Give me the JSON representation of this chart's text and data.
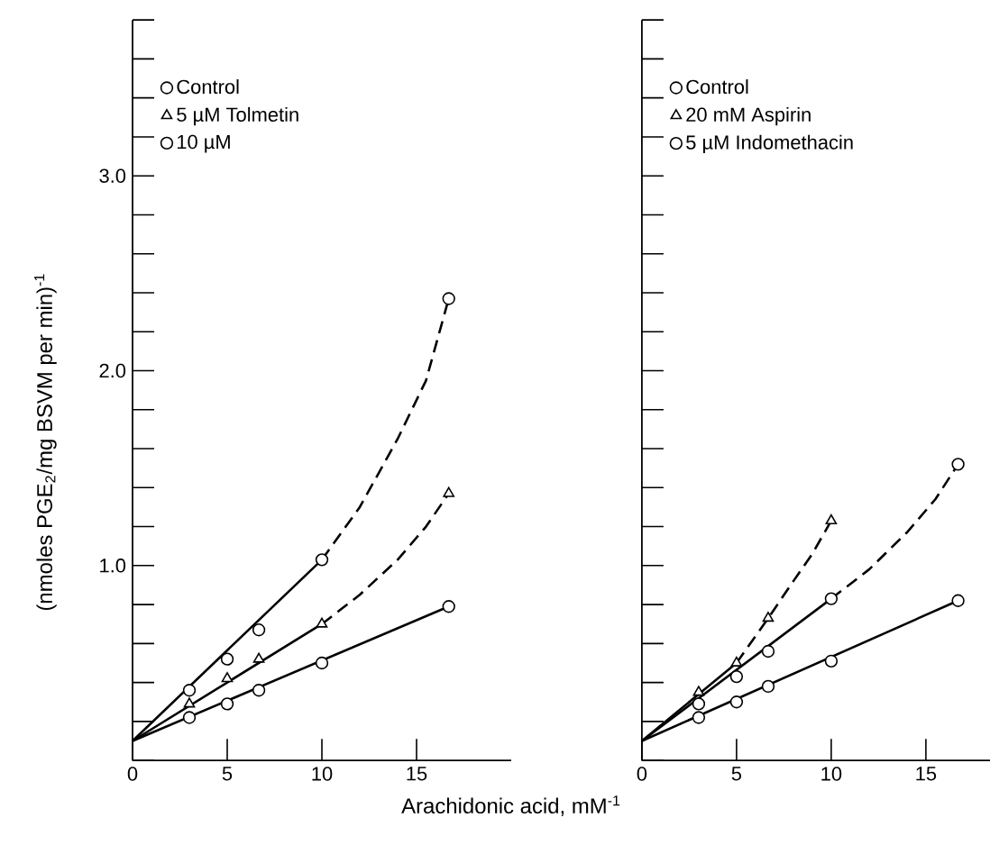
{
  "chart_data": [
    {
      "type": "scatter",
      "xlabel": "Arachidonic acid,  mM$^{-1}$",
      "ylabel": "(nmoles PGE$_{2}$/mg BSVM per min)$^{-1}$",
      "xlim": [
        0,
        20
      ],
      "ylim": [
        0,
        3.8
      ],
      "xticks": [
        0,
        5,
        10,
        15
      ],
      "yticks": [
        {
          "value": 0,
          "label": null
        },
        {
          "value": 0.2,
          "label": null
        },
        {
          "value": 0.4,
          "label": null
        },
        {
          "value": 0.6,
          "label": null
        },
        {
          "value": 0.8,
          "label": null
        },
        {
          "value": 1.0,
          "label": "1.0"
        },
        {
          "value": 1.2,
          "label": null
        },
        {
          "value": 1.4,
          "label": null
        },
        {
          "value": 1.6,
          "label": null
        },
        {
          "value": 1.8,
          "label": null
        },
        {
          "value": 2.0,
          "label": "2.0"
        },
        {
          "value": 2.2,
          "label": null
        },
        {
          "value": 2.4,
          "label": null
        },
        {
          "value": 2.6,
          "label": null
        },
        {
          "value": 2.8,
          "label": null
        },
        {
          "value": 3.0,
          "label": "3.0"
        },
        {
          "value": 3.2,
          "label": null
        },
        {
          "value": 3.4,
          "label": null
        },
        {
          "value": 3.6,
          "label": null
        },
        {
          "value": 3.8,
          "label": null
        }
      ],
      "grid": false,
      "legend": "top left",
      "series": [
        {
          "name": "Control",
          "color": "#000000",
          "marker": "circle",
          "x": [
            3,
            5,
            6.67,
            10,
            16.7
          ],
          "values": [
            0.22,
            0.29,
            0.36,
            0.5,
            0.79
          ]
        },
        {
          "name": "5 µM  Tolmetin",
          "color": "#000000",
          "marker": "triangle",
          "x": [
            3,
            5,
            6.67,
            10,
            16.7
          ],
          "values": [
            0.29,
            0.42,
            0.52,
            0.7,
            1.37
          ]
        },
        {
          "name": "10 µM",
          "color": "#000000",
          "marker": "circle",
          "x": [
            3,
            5,
            6.67,
            10,
            16.7
          ],
          "values": [
            0.36,
            0.52,
            0.67,
            1.03,
            2.37
          ]
        },
        {
          "type": "line",
          "color": "#000000",
          "line_style": "solid",
          "x": [
            0,
            16.7
          ],
          "values": [
            0.1,
            0.79
          ]
        },
        {
          "type": "line",
          "color": "#000000",
          "line_style": "solid",
          "x": [
            0,
            10
          ],
          "values": [
            0.1,
            0.7
          ]
        },
        {
          "type": "line",
          "color": "#000000",
          "line_style": "solid",
          "x": [
            0,
            10
          ],
          "values": [
            0.1,
            1.03
          ]
        },
        {
          "type": "line",
          "color": "#000000",
          "line_style": "dashed",
          "x": [
            10,
            12,
            14,
            15.5,
            16.7
          ],
          "values": [
            0.7,
            0.85,
            1.03,
            1.2,
            1.37
          ]
        },
        {
          "type": "line",
          "color": "#000000",
          "line_style": "dashed",
          "x": [
            10,
            12,
            14,
            15.5,
            16.7
          ],
          "values": [
            1.03,
            1.3,
            1.65,
            1.95,
            2.37
          ]
        }
      ]
    },
    {
      "type": "scatter",
      "tick_labels": "x",
      "xlim": [
        0,
        20
      ],
      "ylim": [
        0,
        3.8
      ],
      "xticks": [
        0,
        5,
        10,
        15
      ],
      "yticks": [
        {
          "value": 0,
          "label": null
        },
        {
          "value": 0.2,
          "label": null
        },
        {
          "value": 0.4,
          "label": null
        },
        {
          "value": 0.6,
          "label": null
        },
        {
          "value": 0.8,
          "label": null
        },
        {
          "value": 1.0,
          "label": null
        },
        {
          "value": 1.2,
          "label": null
        },
        {
          "value": 1.4,
          "label": null
        },
        {
          "value": 1.6,
          "label": null
        },
        {
          "value": 1.8,
          "label": null
        },
        {
          "value": 2.0,
          "label": null
        },
        {
          "value": 2.2,
          "label": null
        },
        {
          "value": 2.4,
          "label": null
        },
        {
          "value": 2.6,
          "label": null
        },
        {
          "value": 2.8,
          "label": null
        },
        {
          "value": 3.0,
          "label": null
        },
        {
          "value": 3.2,
          "label": null
        },
        {
          "value": 3.4,
          "label": null
        },
        {
          "value": 3.6,
          "label": null
        },
        {
          "value": 3.8,
          "label": null
        }
      ],
      "grid": false,
      "legend": "top left",
      "series": [
        {
          "name": "Control",
          "color": "#000000",
          "marker": "circle",
          "x": [
            3,
            5,
            6.67,
            10,
            16.7
          ],
          "values": [
            0.22,
            0.3,
            0.38,
            0.51,
            0.82
          ]
        },
        {
          "name": "20 mM  Aspirin",
          "color": "#000000",
          "marker": "triangle",
          "x": [
            3,
            5,
            6.67,
            10
          ],
          "values": [
            0.35,
            0.5,
            0.73,
            1.23
          ]
        },
        {
          "name": "5 µM Indomethacin",
          "color": "#000000",
          "marker": "circle",
          "x": [
            3,
            5,
            6.67,
            10,
            16.7
          ],
          "values": [
            0.29,
            0.43,
            0.56,
            0.83,
            1.52
          ]
        },
        {
          "type": "line",
          "color": "#000000",
          "line_style": "solid",
          "x": [
            0,
            16.7
          ],
          "values": [
            0.1,
            0.82
          ]
        },
        {
          "type": "line",
          "color": "#000000",
          "line_style": "solid",
          "x": [
            0,
            5
          ],
          "values": [
            0.1,
            0.5
          ]
        },
        {
          "type": "line",
          "color": "#000000",
          "line_style": "solid",
          "x": [
            0,
            10
          ],
          "values": [
            0.1,
            0.83
          ]
        },
        {
          "type": "line",
          "color": "#000000",
          "line_style": "dashed",
          "x": [
            5,
            6.67,
            8,
            9,
            10
          ],
          "values": [
            0.5,
            0.73,
            0.92,
            1.06,
            1.23
          ]
        },
        {
          "type": "line",
          "color": "#000000",
          "line_style": "dashed",
          "x": [
            10,
            12,
            14,
            15.5,
            16.7
          ],
          "values": [
            0.83,
            0.98,
            1.17,
            1.34,
            1.52
          ]
        }
      ]
    }
  ]
}
